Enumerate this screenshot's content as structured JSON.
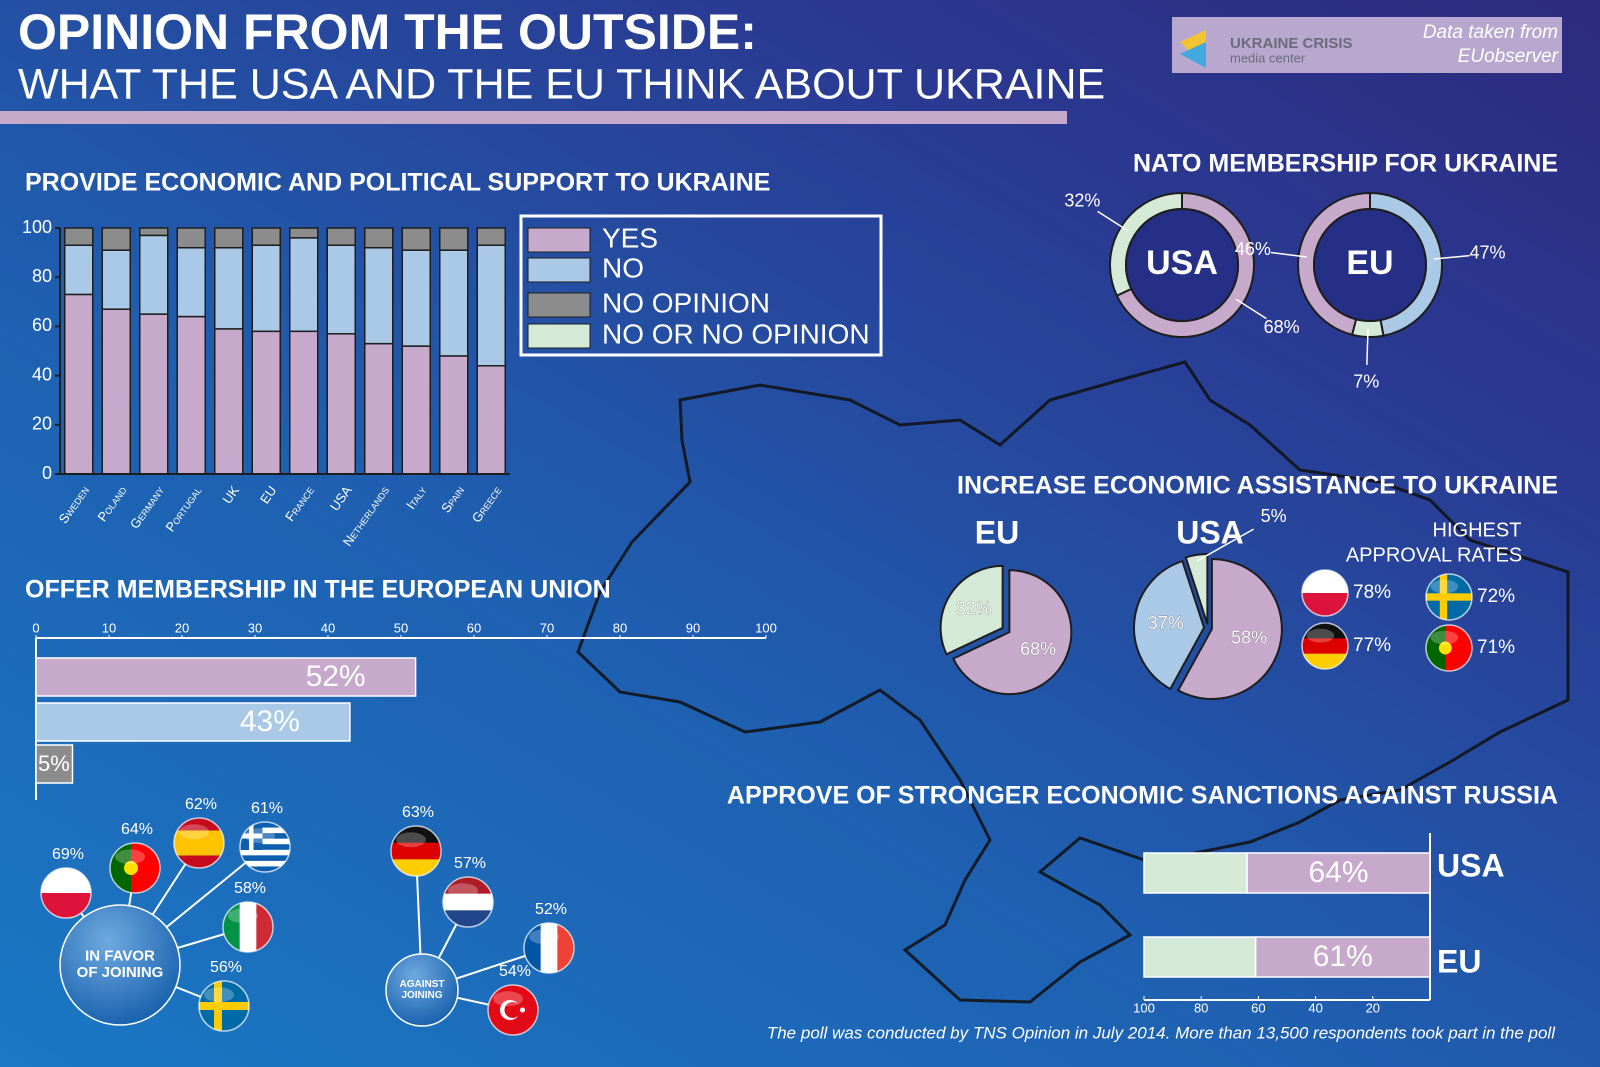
{
  "header": {
    "title": "OPINION FROM THE OUTSIDE:",
    "subtitle": "WHAT THE USA AND THE EU THINK ABOUT UKRAINE"
  },
  "logo": {
    "name": "UKRAINE CRISIS",
    "tagline": "media center"
  },
  "source": [
    "Data taken from",
    "EUobserver"
  ],
  "footer": "The poll was conducted by TNS Opinion in July 2014. More than 13,500 respondents took part in the poll",
  "chart_data": [
    {
      "type": "stacked-bar",
      "title": "PROVIDE ECONOMIC AND POLITICAL SUPPORT TO UKRAINE",
      "categories": [
        "Sweden",
        "Poland",
        "Germany",
        "Portugal",
        "UK",
        "EU",
        "France",
        "USA",
        "Netherlands",
        "Italy",
        "Spain",
        "Greece"
      ],
      "series": [
        {
          "name": "YES",
          "color": "#c7a9cc",
          "values": [
            73,
            67,
            65,
            64,
            59,
            58,
            58,
            57,
            53,
            52,
            48,
            44
          ]
        },
        {
          "name": "NO",
          "color": "#a9c9e6",
          "values": [
            20,
            24,
            32,
            28,
            33,
            35,
            38,
            36,
            39,
            39,
            43,
            49
          ]
        },
        {
          "name": "NO OPINION",
          "color": "#8c8c8c",
          "values": [
            7,
            9,
            3,
            8,
            8,
            7,
            4,
            7,
            8,
            9,
            9,
            7
          ]
        },
        {
          "name": "NO OR NO  OPINION",
          "color": "#d4ead6",
          "values": [
            null,
            null,
            null,
            null,
            null,
            null,
            null,
            null,
            null,
            null,
            null,
            null
          ]
        }
      ],
      "ylim": [
        0,
        100
      ],
      "yticks": [
        0,
        20,
        40,
        60,
        80,
        100
      ]
    },
    {
      "type": "donut",
      "title": "NATO MEMBERSHIP FOR UKRAINE",
      "groups": [
        {
          "name": "USA",
          "values": [
            68,
            32
          ],
          "value_labels": [
            "68%",
            "32%"
          ],
          "colors": [
            "#c7a9cc",
            "#d4ead6"
          ]
        },
        {
          "name": "EU",
          "values": [
            47,
            7,
            46
          ],
          "value_labels": [
            "47%",
            "7%",
            "46%"
          ],
          "colors": [
            "#a9c9e6",
            "#d4ead6",
            "#c7a9cc"
          ]
        }
      ]
    },
    {
      "type": "pie",
      "title": "INCREASE ECONOMIC ASSISTANCE TO UKRAINE",
      "groups": [
        {
          "name": "EU",
          "values": [
            68,
            32
          ],
          "value_labels": [
            "68%",
            "32%"
          ],
          "colors": [
            "#c7a9cc",
            "#d4ead6"
          ]
        },
        {
          "name": "USA",
          "values": [
            58,
            37,
            5
          ],
          "value_labels": [
            "58%",
            "37%",
            "5%"
          ],
          "colors": [
            "#c7a9cc",
            "#a9c9e6",
            "#d4ead6"
          ]
        }
      ],
      "approval": {
        "title": [
          "HIGHEST",
          "APPROVAL RATES"
        ],
        "values": [
          78,
          77,
          72,
          71
        ],
        "value_labels": [
          "78%",
          "77%",
          "72%",
          "71%"
        ]
      }
    },
    {
      "type": "hbar",
      "title": "OFFER MEMBERSHIP IN THE EUROPEAN UNION",
      "values": [
        52,
        43,
        5
      ],
      "value_labels": [
        "52%",
        "43%",
        "5%"
      ],
      "colors": [
        "#c7a9cc",
        "#a9c9e6",
        "#8c8c8c"
      ],
      "xlim": [
        0,
        100
      ],
      "xticks": [
        0,
        10,
        20,
        30,
        40,
        50,
        60,
        70,
        80,
        90,
        100
      ],
      "in_favor": {
        "label": [
          "IN FAVOR",
          "OF JOINING"
        ],
        "values": [
          69,
          64,
          62,
          61,
          58,
          56
        ],
        "value_labels": [
          "69%",
          "64%",
          "62%",
          "61%",
          "58%",
          "56%"
        ]
      },
      "against": {
        "label": [
          "AGAINST",
          "JOINING"
        ],
        "values": [
          63,
          57,
          52,
          54
        ],
        "value_labels": [
          "63%",
          "57%",
          "52%",
          "54%"
        ]
      }
    },
    {
      "type": "stacked-hbar",
      "title": "APPROVE OF STRONGER ECONOMIC SANCTIONS AGAINST RUSSIA",
      "categories": [
        "USA",
        "EU"
      ],
      "series": [
        {
          "color": "#c7a9cc",
          "values": [
            64,
            61
          ],
          "value_labels": [
            "64%",
            "61%"
          ]
        },
        {
          "color": "#d4ead6",
          "values": [
            36,
            39
          ]
        }
      ],
      "xlim": [
        100,
        0
      ],
      "xticks": [
        100,
        80,
        60,
        40,
        20
      ]
    }
  ]
}
